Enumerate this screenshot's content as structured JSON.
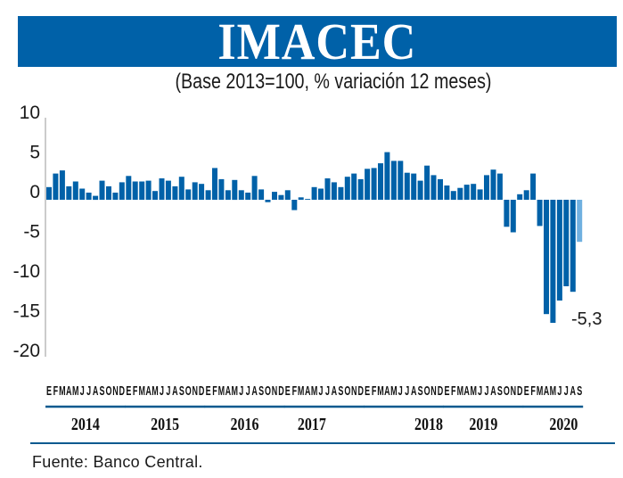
{
  "chart_data": {
    "type": "bar",
    "title": "IMACEC",
    "subtitle": "(Base 2013=100, % variación 12 meses)",
    "xlabel": "",
    "ylabel": "",
    "ylim": [
      -20,
      10
    ],
    "yticks": [
      10,
      5,
      0,
      -5,
      -10,
      -15,
      -20
    ],
    "ytick_labels": [
      "10",
      "5",
      "0",
      "-5",
      "-10",
      "-15",
      "-20"
    ],
    "grid": false,
    "legend": "none",
    "colors": {
      "bar": "#0061a8",
      "highlight": "#6fb0e0",
      "title_bg": "#0061a8",
      "rule": "#0a5a8f"
    },
    "years": [
      {
        "label": "2014",
        "months": [
          "E",
          "F",
          "M",
          "A",
          "M",
          "J",
          "J",
          "A",
          "S",
          "O",
          "N",
          "D"
        ],
        "values": [
          1.6,
          3.3,
          3.7,
          1.7,
          2.3,
          1.4,
          0.9,
          0.5,
          2.4,
          1.7,
          0.9,
          2.2
        ]
      },
      {
        "label": "2015",
        "months": [
          "E",
          "F",
          "M",
          "A",
          "M",
          "J",
          "J",
          "A",
          "S",
          "O",
          "N",
          "D"
        ],
        "values": [
          3.0,
          2.3,
          2.3,
          2.4,
          1.1,
          2.7,
          2.4,
          1.7,
          2.9,
          1.3,
          2.2,
          2.0
        ]
      },
      {
        "label": "2016",
        "months": [
          "E",
          "F",
          "M",
          "A",
          "M",
          "J",
          "J",
          "A",
          "S",
          "O",
          "N",
          "D"
        ],
        "values": [
          1.2,
          4.0,
          2.6,
          1.2,
          2.5,
          1.2,
          0.9,
          3.0,
          1.3,
          -0.3,
          1.0,
          0.6
        ]
      },
      {
        "label": "2017",
        "months": [
          "E",
          "F",
          "M",
          "A",
          "M",
          "J",
          "J",
          "A",
          "S",
          "O",
          "N",
          "D"
        ],
        "values": [
          1.2,
          -1.3,
          0.3,
          0.1,
          1.6,
          1.4,
          2.7,
          2.2,
          1.6,
          2.9,
          3.3,
          2.6
        ]
      },
      {
        "label": "2018",
        "months": [
          "E",
          "F",
          "M",
          "A",
          "M",
          "J",
          "J",
          "A",
          "S",
          "O",
          "N",
          "D"
        ],
        "values": [
          3.9,
          4.0,
          4.6,
          6.0,
          4.9,
          4.9,
          3.4,
          3.3,
          2.4,
          4.3,
          3.1,
          2.6
        ]
      },
      {
        "label": "2019",
        "months": [
          "E",
          "F",
          "M",
          "A",
          "M",
          "J",
          "J",
          "A",
          "S",
          "O",
          "N",
          "D"
        ],
        "values": [
          1.8,
          1.1,
          1.5,
          1.9,
          2.0,
          1.3,
          3.1,
          3.8,
          3.3,
          -3.4,
          -4.1,
          0.7
        ]
      },
      {
        "label": "2020",
        "months": [
          "E",
          "F",
          "M",
          "A",
          "M",
          "J",
          "J",
          "A",
          "S"
        ],
        "values": [
          1.2,
          3.3,
          -3.3,
          -14.4,
          -15.5,
          -12.7,
          -10.9,
          -11.6,
          -5.3
        ]
      }
    ],
    "highlight_last": true,
    "annotations": [
      {
        "text": "-5,3",
        "target": "2020-S"
      }
    ]
  },
  "footer": {
    "source": "Fuente: Banco Central."
  }
}
